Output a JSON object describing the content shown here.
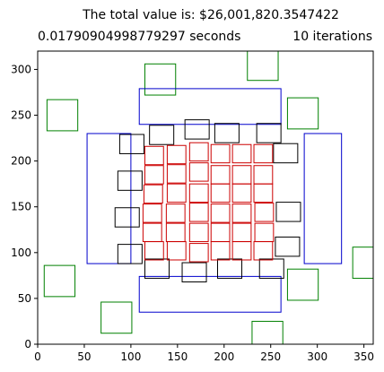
{
  "header": {
    "line1": "The total value is: $26,001,820.3547422",
    "line2_left": "0.01790904998779297 seconds",
    "line2_right": "10 iterations"
  },
  "chart_data": {
    "type": "scatter",
    "title": "The total value is: $26,001,820.3547422",
    "subtitle_left": "0.01790904998779297 seconds",
    "subtitle_right": "10 iterations",
    "xlabel": "",
    "ylabel": "",
    "xlim": [
      0,
      360
    ],
    "ylim": [
      0,
      320
    ],
    "xticks": [
      0,
      50,
      100,
      150,
      200,
      250,
      300,
      350
    ],
    "yticks": [
      0,
      50,
      100,
      150,
      200,
      250,
      300
    ],
    "grid": false,
    "colors": {
      "green": "#008000",
      "blue": "#0000cc",
      "black": "#000000",
      "red": "#cc0000"
    },
    "rectangles": {
      "green": [
        [
          115,
          272,
          33,
          34
        ],
        [
          225,
          288,
          33,
          32
        ],
        [
          10,
          233,
          33,
          34
        ],
        [
          268,
          235,
          33,
          34
        ],
        [
          338,
          72,
          22,
          34
        ],
        [
          7,
          52,
          33,
          34
        ],
        [
          268,
          48,
          33,
          34
        ],
        [
          68,
          12,
          33,
          34
        ],
        [
          230,
          0,
          33,
          25
        ]
      ],
      "blue": [
        [
          109,
          240,
          152,
          39
        ],
        [
          53,
          88,
          47,
          142
        ],
        [
          286,
          88,
          40,
          142
        ],
        [
          109,
          35,
          152,
          39
        ]
      ],
      "black": [
        [
          120,
          218,
          26,
          21
        ],
        [
          158,
          224,
          26,
          21
        ],
        [
          190,
          220,
          26,
          21
        ],
        [
          235,
          220,
          26,
          21
        ],
        [
          88,
          208,
          26,
          21
        ],
        [
          253,
          198,
          26,
          21
        ],
        [
          86,
          168,
          26,
          21
        ],
        [
          83,
          128,
          26,
          21
        ],
        [
          256,
          134,
          26,
          21
        ],
        [
          86,
          88,
          26,
          21
        ],
        [
          255,
          96,
          26,
          21
        ],
        [
          115,
          72,
          26,
          21
        ],
        [
          155,
          68,
          26,
          21
        ],
        [
          193,
          72,
          26,
          21
        ],
        [
          238,
          72,
          26,
          21
        ]
      ],
      "red": [
        [
          115,
          196,
          20,
          20
        ],
        [
          139,
          197,
          20,
          20
        ],
        [
          163,
          200,
          20,
          20
        ],
        [
          186,
          198,
          20,
          20
        ],
        [
          209,
          198,
          20,
          20
        ],
        [
          232,
          198,
          20,
          20
        ],
        [
          115,
          175,
          20,
          20
        ],
        [
          139,
          176,
          20,
          20
        ],
        [
          163,
          178,
          20,
          20
        ],
        [
          186,
          175,
          20,
          20
        ],
        [
          209,
          175,
          20,
          20
        ],
        [
          232,
          175,
          20,
          20
        ],
        [
          114,
          154,
          20,
          20
        ],
        [
          139,
          155,
          20,
          20
        ],
        [
          163,
          155,
          20,
          20
        ],
        [
          186,
          155,
          20,
          20
        ],
        [
          209,
          155,
          20,
          20
        ],
        [
          232,
          155,
          20,
          20
        ],
        [
          113,
          133,
          20,
          20
        ],
        [
          138,
          133,
          20,
          20
        ],
        [
          163,
          134,
          20,
          20
        ],
        [
          186,
          133,
          20,
          20
        ],
        [
          209,
          133,
          20,
          20
        ],
        [
          233,
          134,
          20,
          20
        ],
        [
          113,
          112,
          20,
          20
        ],
        [
          138,
          112,
          20,
          20
        ],
        [
          163,
          112,
          20,
          20
        ],
        [
          186,
          112,
          20,
          20
        ],
        [
          209,
          112,
          20,
          20
        ],
        [
          233,
          112,
          20,
          20
        ],
        [
          115,
          92,
          20,
          20
        ],
        [
          139,
          92,
          20,
          20
        ],
        [
          163,
          90,
          20,
          20
        ],
        [
          186,
          92,
          20,
          20
        ],
        [
          209,
          92,
          20,
          20
        ],
        [
          232,
          92,
          20,
          20
        ]
      ]
    }
  }
}
